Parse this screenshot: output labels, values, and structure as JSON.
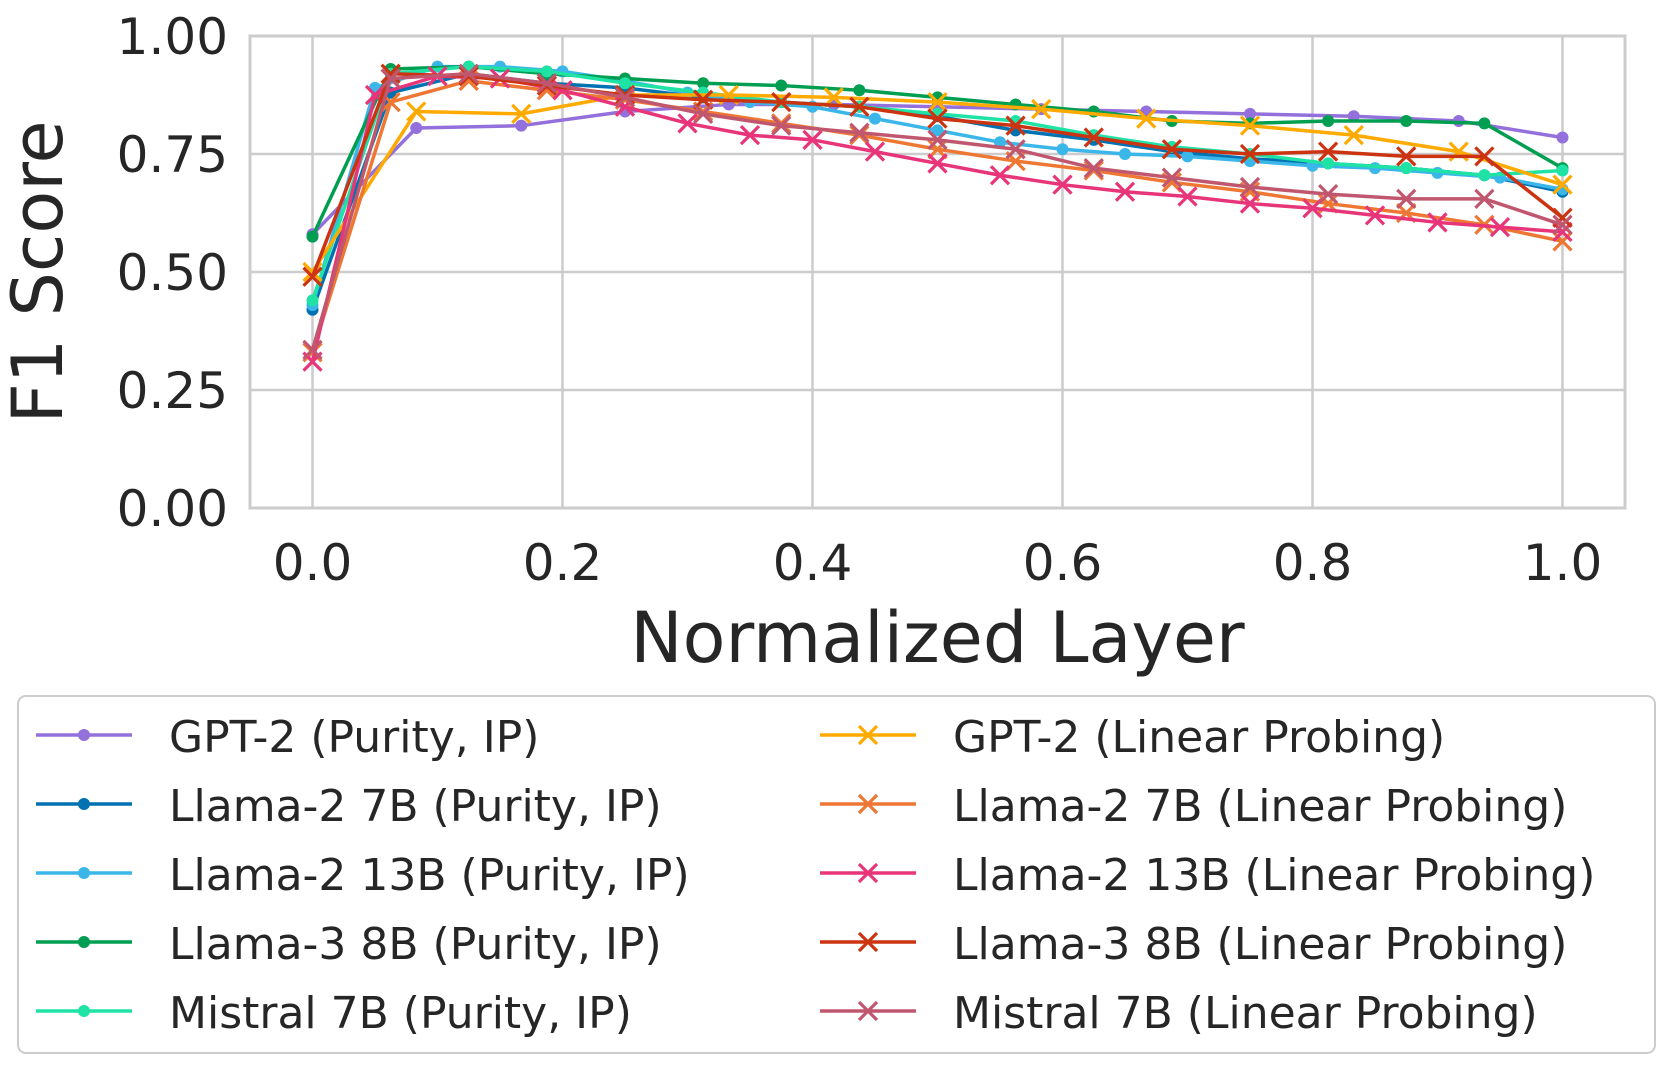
{
  "chart_data": {
    "type": "line",
    "title": "",
    "xlabel": "Normalized Layer",
    "ylabel": "F1 Score",
    "xlim": [
      -0.05,
      1.05
    ],
    "ylim": [
      0,
      1
    ],
    "xticks": [
      "0.0",
      "0.2",
      "0.4",
      "0.6",
      "0.8",
      "1.0"
    ],
    "yticks": [
      "0.00",
      "0.25",
      "0.50",
      "0.75",
      "1.00"
    ],
    "grid": true,
    "legend_position": "below plot, two columns",
    "series": [
      {
        "name": "GPT-2 (Purity, IP)",
        "color": "#9370db",
        "marker": "dot",
        "x": [
          0,
          0.083,
          0.167,
          0.25,
          0.333,
          0.417,
          0.5,
          0.583,
          0.667,
          0.75,
          0.833,
          0.917,
          1.0
        ],
        "y": [
          0.58,
          0.805,
          0.81,
          0.84,
          0.855,
          0.855,
          0.85,
          0.845,
          0.84,
          0.835,
          0.83,
          0.82,
          0.785
        ]
      },
      {
        "name": "Llama-2 7B (Purity, IP)",
        "color": "#0072b2",
        "marker": "dot",
        "x": [
          0,
          0.0625,
          0.125,
          0.1875,
          0.25,
          0.3125,
          0.375,
          0.4375,
          0.5,
          0.5625,
          0.625,
          0.6875,
          0.75,
          0.8125,
          0.875,
          0.9375,
          1.0
        ],
        "y": [
          0.42,
          0.88,
          0.92,
          0.9,
          0.89,
          0.87,
          0.86,
          0.85,
          0.83,
          0.8,
          0.78,
          0.755,
          0.74,
          0.73,
          0.72,
          0.705,
          0.67
        ]
      },
      {
        "name": "Llama-2 13B (Purity, IP)",
        "color": "#3ab7e8",
        "marker": "dot",
        "x": [
          0,
          0.05,
          0.1,
          0.15,
          0.2,
          0.25,
          0.3,
          0.35,
          0.4,
          0.45,
          0.5,
          0.55,
          0.6,
          0.65,
          0.7,
          0.75,
          0.8,
          0.85,
          0.9,
          0.95,
          1.0
        ],
        "y": [
          0.43,
          0.89,
          0.935,
          0.935,
          0.925,
          0.905,
          0.88,
          0.86,
          0.85,
          0.825,
          0.8,
          0.775,
          0.76,
          0.75,
          0.745,
          0.735,
          0.725,
          0.72,
          0.71,
          0.7,
          0.675
        ]
      },
      {
        "name": "Llama-3 8B (Purity, IP)",
        "color": "#009e50",
        "marker": "dot",
        "x": [
          0,
          0.0625,
          0.125,
          0.1875,
          0.25,
          0.3125,
          0.375,
          0.4375,
          0.5,
          0.5625,
          0.625,
          0.6875,
          0.75,
          0.8125,
          0.875,
          0.9375,
          1.0
        ],
        "y": [
          0.575,
          0.93,
          0.935,
          0.92,
          0.91,
          0.9,
          0.895,
          0.885,
          0.87,
          0.855,
          0.84,
          0.82,
          0.815,
          0.82,
          0.82,
          0.815,
          0.72
        ]
      },
      {
        "name": "Mistral 7B (Purity, IP)",
        "color": "#1ee3a5",
        "marker": "dot",
        "x": [
          0,
          0.0625,
          0.125,
          0.1875,
          0.25,
          0.3125,
          0.375,
          0.4375,
          0.5,
          0.5625,
          0.625,
          0.6875,
          0.75,
          0.8125,
          0.875,
          0.9375,
          1.0
        ],
        "y": [
          0.44,
          0.92,
          0.935,
          0.925,
          0.9,
          0.88,
          0.86,
          0.85,
          0.835,
          0.82,
          0.79,
          0.765,
          0.75,
          0.73,
          0.72,
          0.705,
          0.715
        ]
      },
      {
        "name": "GPT-2 (Linear Probing)",
        "color": "#ffaa00",
        "marker": "x",
        "x": [
          0,
          0.083,
          0.167,
          0.25,
          0.333,
          0.417,
          0.5,
          0.583,
          0.667,
          0.75,
          0.833,
          0.917,
          1.0
        ],
        "y": [
          0.5,
          0.84,
          0.835,
          0.875,
          0.875,
          0.87,
          0.86,
          0.845,
          0.825,
          0.81,
          0.79,
          0.755,
          0.685
        ]
      },
      {
        "name": "Llama-2 7B (Linear Probing)",
        "color": "#ee7733",
        "marker": "x",
        "x": [
          0,
          0.0625,
          0.125,
          0.1875,
          0.25,
          0.3125,
          0.375,
          0.4375,
          0.5,
          0.5625,
          0.625,
          0.6875,
          0.75,
          0.8125,
          0.875,
          0.9375,
          1.0
        ],
        "y": [
          0.33,
          0.86,
          0.905,
          0.885,
          0.865,
          0.84,
          0.815,
          0.79,
          0.76,
          0.735,
          0.715,
          0.69,
          0.67,
          0.645,
          0.625,
          0.6,
          0.565
        ]
      },
      {
        "name": "Llama-2 13B (Linear Probing)",
        "color": "#e8357a",
        "marker": "x",
        "x": [
          0,
          0.05,
          0.1,
          0.15,
          0.2,
          0.25,
          0.3,
          0.35,
          0.4,
          0.45,
          0.5,
          0.55,
          0.6,
          0.65,
          0.7,
          0.75,
          0.8,
          0.85,
          0.9,
          0.95,
          1.0
        ],
        "y": [
          0.31,
          0.875,
          0.915,
          0.91,
          0.885,
          0.85,
          0.815,
          0.79,
          0.78,
          0.755,
          0.73,
          0.705,
          0.685,
          0.67,
          0.66,
          0.645,
          0.635,
          0.62,
          0.605,
          0.595,
          0.585
        ]
      },
      {
        "name": "Llama-3 8B (Linear Probing)",
        "color": "#cc3311",
        "marker": "x",
        "x": [
          0,
          0.0625,
          0.125,
          0.1875,
          0.25,
          0.3125,
          0.375,
          0.4375,
          0.5,
          0.5625,
          0.625,
          0.6875,
          0.75,
          0.8125,
          0.875,
          0.9375,
          1.0
        ],
        "y": [
          0.49,
          0.92,
          0.915,
          0.895,
          0.875,
          0.865,
          0.86,
          0.85,
          0.825,
          0.81,
          0.785,
          0.76,
          0.75,
          0.755,
          0.745,
          0.745,
          0.615
        ]
      },
      {
        "name": "Mistral 7B (Linear Probing)",
        "color": "#c0576f",
        "marker": "x",
        "x": [
          0,
          0.0625,
          0.125,
          0.1875,
          0.25,
          0.3125,
          0.375,
          0.4375,
          0.5,
          0.5625,
          0.625,
          0.6875,
          0.75,
          0.8125,
          0.875,
          0.9375,
          1.0
        ],
        "y": [
          0.335,
          0.91,
          0.92,
          0.9,
          0.87,
          0.835,
          0.81,
          0.795,
          0.78,
          0.76,
          0.72,
          0.7,
          0.68,
          0.665,
          0.655,
          0.655,
          0.6
        ]
      }
    ]
  }
}
